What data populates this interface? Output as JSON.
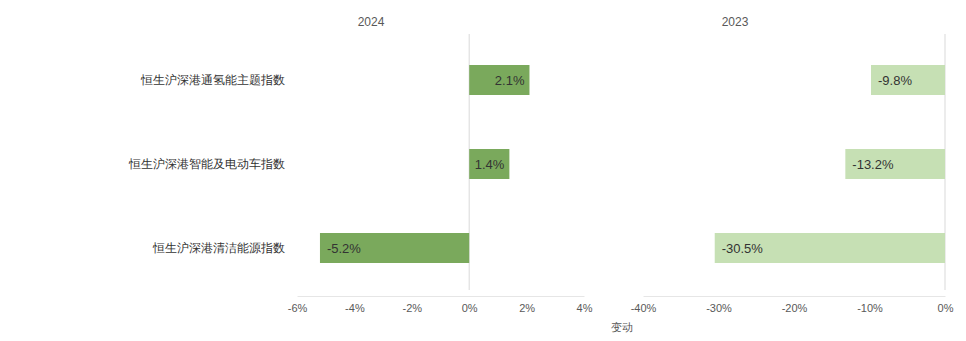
{
  "chart_data": [
    {
      "type": "bar",
      "title": "2024",
      "orientation": "horizontal",
      "categories": [
        "恒生沪深港通氢能主题指数",
        "恒生沪深港智能及电动车指数",
        "恒生沪深港清洁能源指数"
      ],
      "values": [
        2.1,
        1.4,
        -5.2
      ],
      "value_labels": [
        "2.1%",
        "1.4%",
        "-5.2%"
      ],
      "color": "#7aa95c",
      "data_labels": true,
      "grid": false,
      "xlim": [
        -6,
        4
      ],
      "xticks": [
        {
          "value": -6,
          "label": "-6%"
        },
        {
          "value": -4,
          "label": "-4%"
        },
        {
          "value": -2,
          "label": "-2%"
        },
        {
          "value": 0,
          "label": "0%"
        },
        {
          "value": 2,
          "label": "2%"
        },
        {
          "value": 4,
          "label": "4%"
        }
      ]
    },
    {
      "type": "bar",
      "title": "2023",
      "orientation": "horizontal",
      "x_label": "变动",
      "categories": [
        "恒生沪深港通氢能主题指数",
        "恒生沪深港智能及电动车指数",
        "恒生沪深港清洁能源指数"
      ],
      "values": [
        -9.8,
        -13.2,
        -30.5
      ],
      "value_labels": [
        "-9.8%",
        "-13.2%",
        "-30.5%"
      ],
      "color": "#c6e0b4",
      "data_labels": true,
      "grid": false,
      "tick_labels": "x",
      "xlim": [
        -40,
        0
      ],
      "xticks": [
        {
          "value": -40,
          "label": "-40%"
        },
        {
          "value": -30,
          "label": "-30%"
        },
        {
          "value": -20,
          "label": "-20%"
        },
        {
          "value": -10,
          "label": "-10%"
        },
        {
          "value": 0,
          "label": "0%"
        }
      ]
    }
  ]
}
